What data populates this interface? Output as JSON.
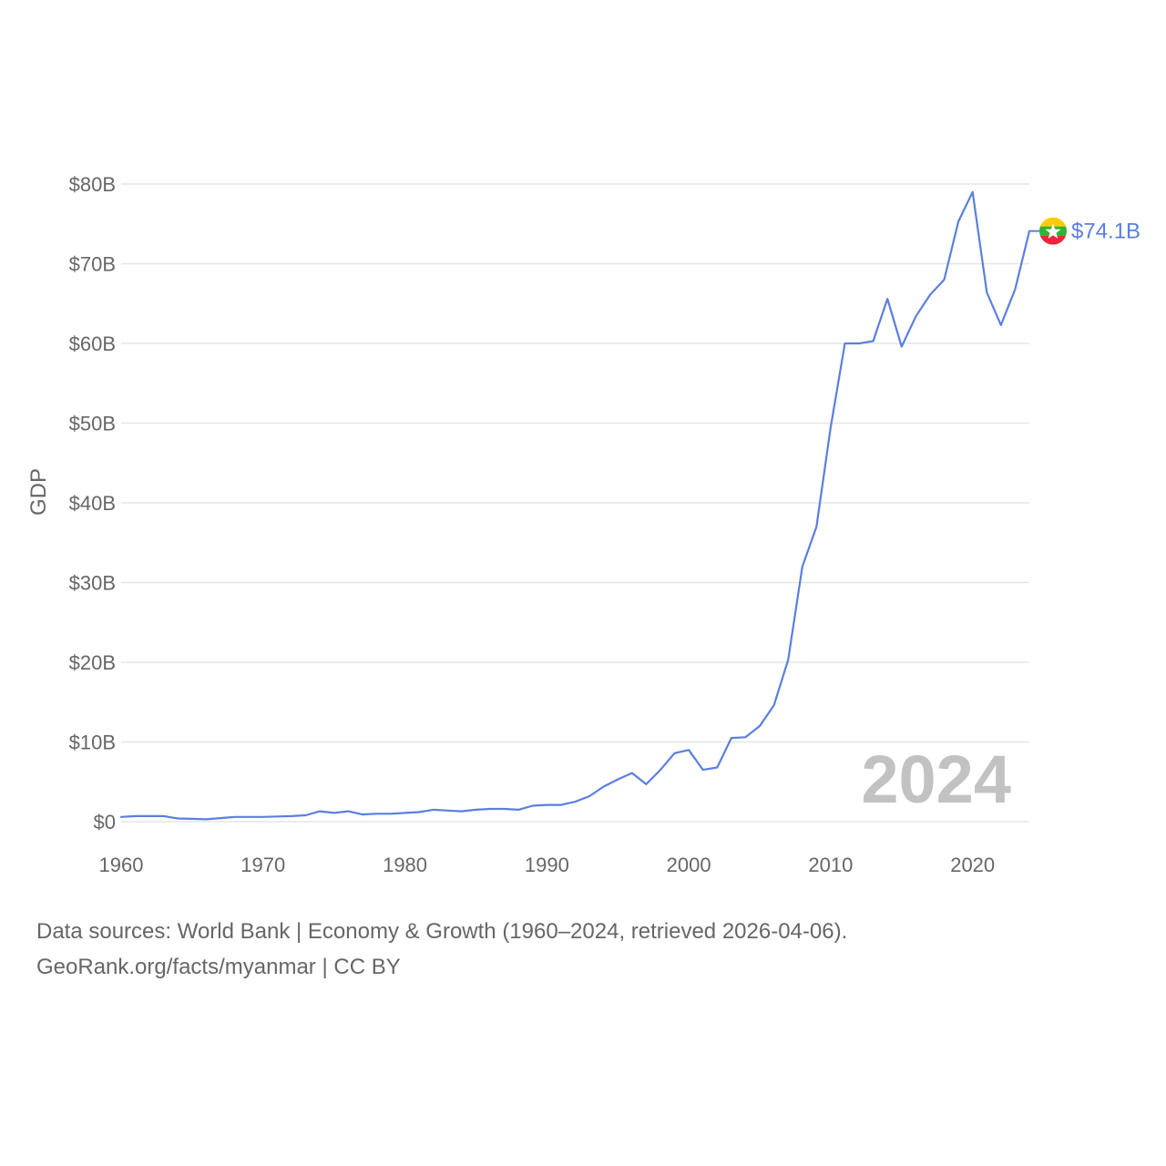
{
  "chart_data": {
    "type": "line",
    "title": "",
    "xlabel": "",
    "ylabel": "GDP",
    "xlim": [
      1960,
      2024
    ],
    "ylim": [
      0,
      80
    ],
    "unit": "billion USD",
    "x_ticks": [
      {
        "value": 1960,
        "label": "1960"
      },
      {
        "value": 1970,
        "label": "1970"
      },
      {
        "value": 1980,
        "label": "1980"
      },
      {
        "value": 1990,
        "label": "1990"
      },
      {
        "value": 2000,
        "label": "2000"
      },
      {
        "value": 2010,
        "label": "2010"
      },
      {
        "value": 2020,
        "label": "2020"
      }
    ],
    "y_ticks": [
      {
        "value": 0,
        "label": "$0"
      },
      {
        "value": 10,
        "label": "$10B"
      },
      {
        "value": 20,
        "label": "$20B"
      },
      {
        "value": 30,
        "label": "$30B"
      },
      {
        "value": 40,
        "label": "$40B"
      },
      {
        "value": 50,
        "label": "$50B"
      },
      {
        "value": 60,
        "label": "$60B"
      },
      {
        "value": 70,
        "label": "$70B"
      },
      {
        "value": 80,
        "label": "$80B"
      }
    ],
    "grid": true,
    "legend": "none",
    "series": [
      {
        "name": "Myanmar",
        "color": "#5b7fe0",
        "end_label": "$74.1B",
        "flag_colors": [
          "#fecb00",
          "#34b233",
          "#ea2839",
          "#ffffff"
        ],
        "x": [
          1960,
          1961,
          1962,
          1963,
          1964,
          1965,
          1966,
          1967,
          1968,
          1969,
          1970,
          1971,
          1972,
          1973,
          1974,
          1975,
          1976,
          1977,
          1978,
          1979,
          1980,
          1981,
          1982,
          1983,
          1984,
          1985,
          1986,
          1987,
          1988,
          1989,
          1990,
          1991,
          1992,
          1993,
          1994,
          1995,
          1996,
          1997,
          1998,
          1999,
          2000,
          2001,
          2002,
          2003,
          2004,
          2005,
          2006,
          2007,
          2008,
          2009,
          2010,
          2011,
          2012,
          2013,
          2014,
          2015,
          2016,
          2017,
          2018,
          2019,
          2020,
          2021,
          2022,
          2023,
          2024
        ],
        "values": [
          0.6,
          0.7,
          0.7,
          0.7,
          0.4,
          0.35,
          0.3,
          0.45,
          0.6,
          0.6,
          0.6,
          0.65,
          0.7,
          0.8,
          1.3,
          1.1,
          1.3,
          0.9,
          1.0,
          1.0,
          1.1,
          1.2,
          1.5,
          1.4,
          1.3,
          1.5,
          1.6,
          1.6,
          1.5,
          2.0,
          2.1,
          2.1,
          2.5,
          3.2,
          4.4,
          5.3,
          6.1,
          4.7,
          6.5,
          8.6,
          9.0,
          6.5,
          6.8,
          10.5,
          10.6,
          12.0,
          14.6,
          20.3,
          32.0,
          37.0,
          49.5,
          60.0,
          60.0,
          60.3,
          65.6,
          59.6,
          63.4,
          66.1,
          68.0,
          75.3,
          79.0,
          66.4,
          62.3,
          66.8,
          74.1
        ]
      }
    ],
    "annotations": [
      {
        "text": "2024",
        "position": "bottom-right"
      }
    ]
  },
  "footer": {
    "line1": "Data sources: World Bank | Economy & Growth (1960–2024, retrieved 2026-04-06).",
    "line2": "GeoRank.org/facts/myanmar | CC BY"
  }
}
